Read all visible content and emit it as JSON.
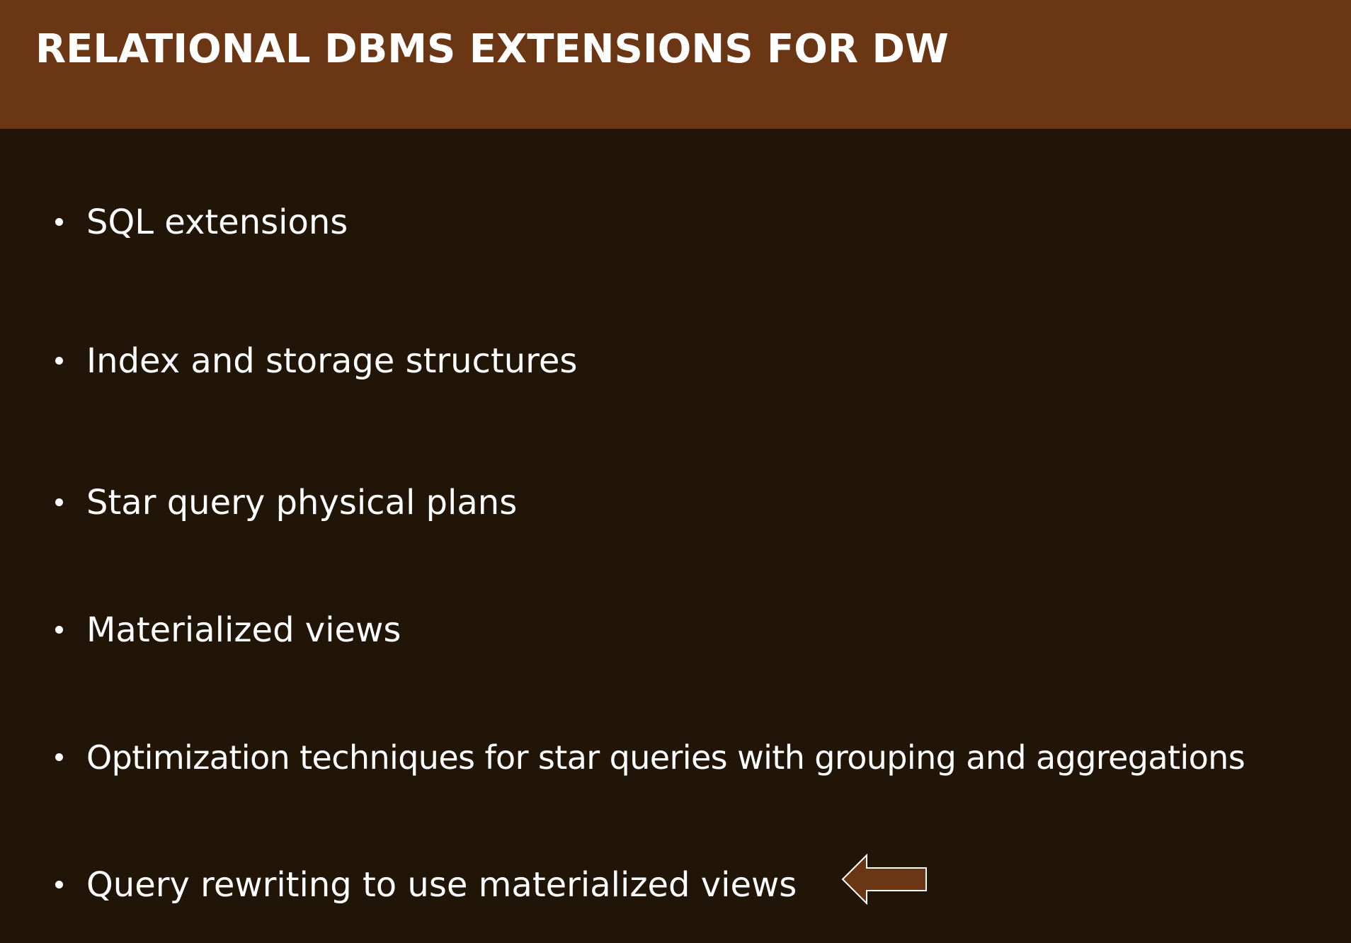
{
  "slide": {
    "title": "RELATIONAL DBMS EXTENSIONS FOR DW",
    "bullets": [
      "SQL extensions",
      "Index and storage structures",
      "Star query physical plans",
      "Materialized views",
      "Optimization techniques for star queries with grouping and aggregations",
      "Query rewriting to use materialized views"
    ],
    "highlight_marker": {
      "icon": "left-arrow-icon",
      "points_to_bullet": 6
    }
  },
  "colors": {
    "title_bar": "#6b3614",
    "background": "#201506",
    "text": "#ffffff",
    "arrow_fill": "#6b3614",
    "arrow_stroke": "#ffffff"
  }
}
